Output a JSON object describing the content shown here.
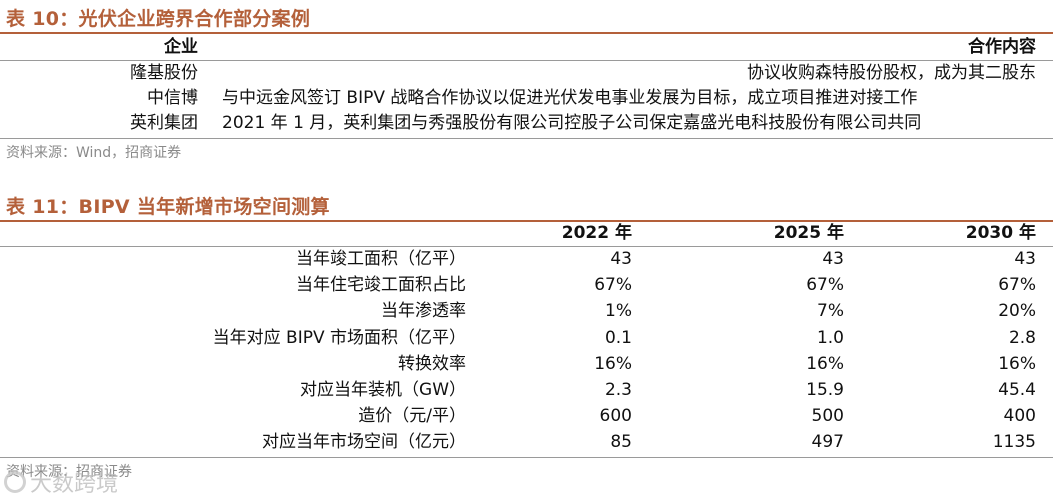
{
  "table10": {
    "title": "表 10：光伏企业跨界合作部分案例",
    "header": {
      "col1": "企业",
      "col2": "合作内容"
    },
    "rows": [
      {
        "company": "隆基股份",
        "content": "协议收购森特股份股权，成为其二股东"
      },
      {
        "company": "中信博",
        "content": "与中远金风签订 BIPV 战略合作协议以促进光伏发电事业发展为目标，成立项目推进对接工作"
      },
      {
        "company": "英利集团",
        "content": "2021 年 1 月，英利集团与秀强股份有限公司控股子公司保定嘉盛光电科技股份有限公司共同"
      }
    ],
    "source": "资料来源：Wind，招商证券"
  },
  "table11": {
    "title": "表 11：BIPV 当年新增市场空间测算",
    "header": [
      "2022 年",
      "2025 年",
      "2030 年"
    ],
    "rows": [
      {
        "label": "当年竣工面积（亿平）",
        "v2022": "43",
        "v2025": "43",
        "v2030": "43"
      },
      {
        "label": "当年住宅竣工面积占比",
        "v2022": "67%",
        "v2025": "67%",
        "v2030": "67%"
      },
      {
        "label": "当年渗透率",
        "v2022": "1%",
        "v2025": "7%",
        "v2030": "20%"
      },
      {
        "label": "当年对应 BIPV 市场面积（亿平）",
        "v2022": "0.1",
        "v2025": "1.0",
        "v2030": "2.8"
      },
      {
        "label": "转换效率",
        "v2022": "16%",
        "v2025": "16%",
        "v2030": "16%"
      },
      {
        "label": "对应当年装机（GW）",
        "v2022": "2.3",
        "v2025": "15.9",
        "v2030": "45.4"
      },
      {
        "label": "造价（元/平）",
        "v2022": "600",
        "v2025": "500",
        "v2030": "400"
      },
      {
        "label": "对应当年市场空间（亿元）",
        "v2022": "85",
        "v2025": "497",
        "v2030": "1135"
      }
    ],
    "source": "资料来源：招商证券"
  },
  "watermark": {
    "text": "大数跨境",
    "icon": "brand-logo-icon"
  },
  "colors": {
    "title": "#b4603a",
    "rule": "#b4603a",
    "source": "#8a8a8a"
  }
}
